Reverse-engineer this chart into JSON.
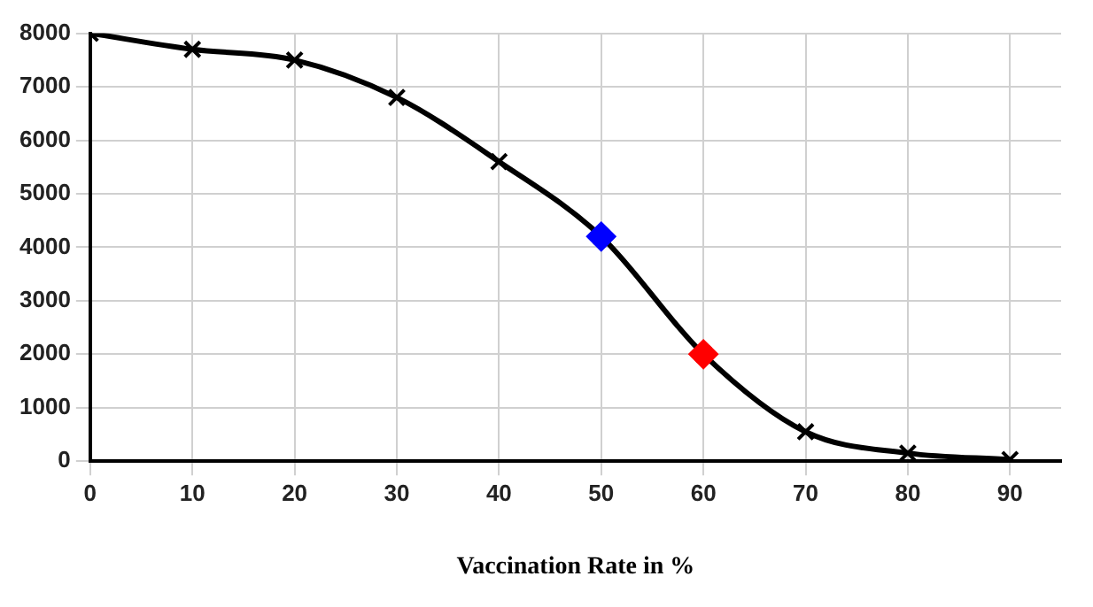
{
  "chart_data": {
    "type": "line",
    "xlabel": "Vaccination Rate in %",
    "x": [
      0,
      10,
      20,
      30,
      40,
      50,
      60,
      70,
      80,
      90
    ],
    "series": [
      {
        "color": "#000000",
        "marker": "cross",
        "values": [
          8000,
          7700,
          7500,
          6800,
          5600,
          4200,
          2000,
          550,
          150,
          30
        ]
      },
      {
        "type": "scatter",
        "color": "#0000ff",
        "marker": "diamond",
        "x": [
          50
        ],
        "values": [
          4200
        ]
      },
      {
        "type": "scatter",
        "color": "#ff0000",
        "marker": "diamond",
        "x": [
          60
        ],
        "values": [
          2000
        ]
      }
    ],
    "xlim": [
      0,
      95
    ],
    "xticks": [
      0,
      10,
      20,
      30,
      40,
      50,
      60,
      70,
      80,
      90
    ],
    "ylim": [
      0,
      8000
    ],
    "yticks": [
      0,
      1000,
      2000,
      3000,
      4000,
      5000,
      6000,
      7000,
      8000
    ],
    "grid": true,
    "legend": false
  }
}
